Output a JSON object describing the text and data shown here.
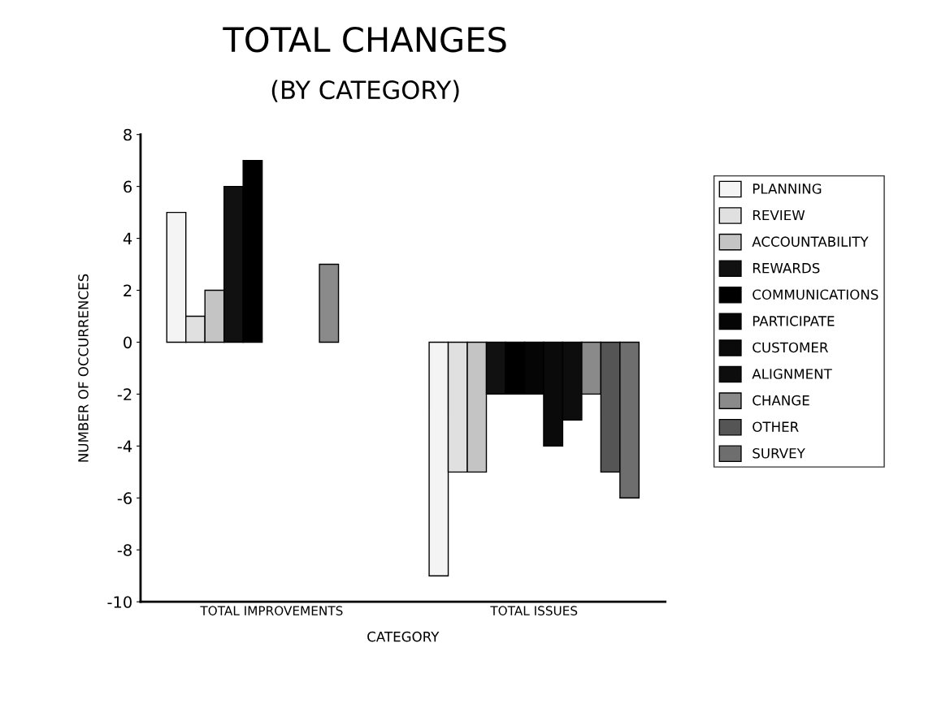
{
  "chart_data": {
    "type": "bar",
    "title": "TOTAL CHANGES",
    "subtitle": "(BY CATEGORY)",
    "xlabel": "CATEGORY",
    "ylabel": "NUMBER OF OCCURRENCES",
    "categories": [
      "TOTAL IMPROVEMENTS",
      "TOTAL ISSUES"
    ],
    "series": [
      {
        "name": "PLANNING",
        "color": "#f4f4f4",
        "values": [
          5,
          -9
        ]
      },
      {
        "name": "REVIEW",
        "color": "#e0e0e0",
        "values": [
          1,
          -5
        ]
      },
      {
        "name": "ACCOUNTABILITY",
        "color": "#c4c4c4",
        "values": [
          2,
          -5
        ]
      },
      {
        "name": "REWARDS",
        "color": "#111111",
        "values": [
          6,
          -2
        ]
      },
      {
        "name": "COMMUNICATIONS",
        "color": "#000000",
        "values": [
          7,
          -2
        ]
      },
      {
        "name": "PARTICIPATE",
        "color": "#050505",
        "values": [
          0,
          -2
        ]
      },
      {
        "name": "CUSTOMER",
        "color": "#0a0a0a",
        "values": [
          0,
          -4
        ]
      },
      {
        "name": "ALIGNMENT",
        "color": "#0d0d0d",
        "values": [
          0,
          -3
        ]
      },
      {
        "name": "CHANGE",
        "color": "#8a8a8a",
        "values": [
          3,
          -2
        ]
      },
      {
        "name": "OTHER",
        "color": "#555555",
        "values": [
          0,
          -5
        ]
      },
      {
        "name": "SURVEY",
        "color": "#6e6e6e",
        "values": [
          0,
          -6
        ]
      }
    ],
    "ylim": [
      -10,
      8
    ],
    "yticks": [
      -10,
      -8,
      -6,
      -4,
      -2,
      0,
      2,
      4,
      6,
      8
    ],
    "legend": "right",
    "grid": false
  }
}
